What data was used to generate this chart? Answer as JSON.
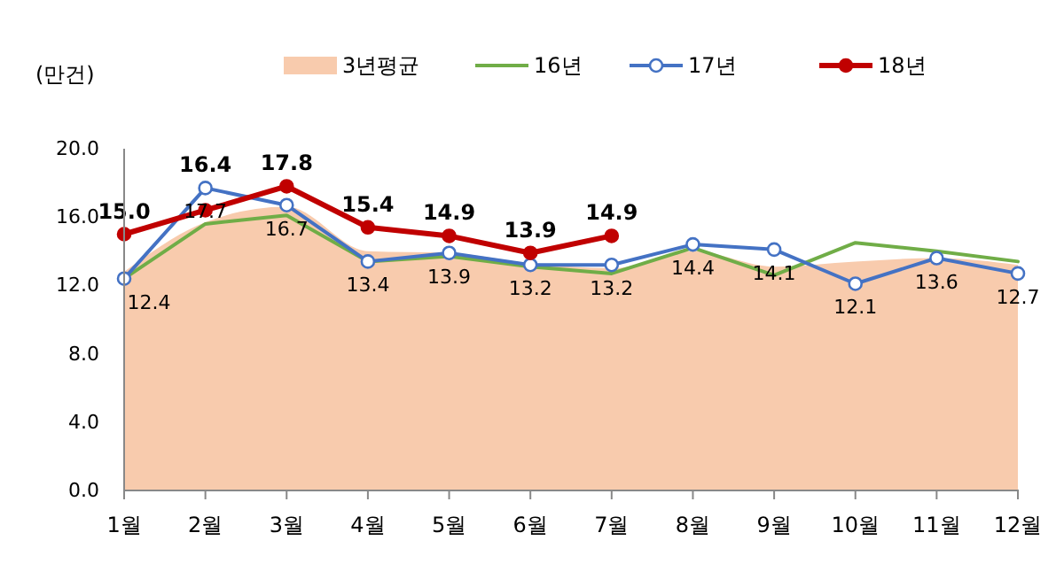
{
  "chart_data": {
    "type": "line",
    "ylabel": "(만건)",
    "categories": [
      "1월",
      "2월",
      "3월",
      "4월",
      "5월",
      "6월",
      "7월",
      "8월",
      "9월",
      "10월",
      "11월",
      "12월"
    ],
    "ylim": [
      0,
      20
    ],
    "yticks": [
      {
        "value": 0,
        "label": "0.0"
      },
      {
        "value": 4,
        "label": "4.0"
      },
      {
        "value": 8,
        "label": "8.0"
      },
      {
        "value": 12,
        "label": "12.0"
      },
      {
        "value": 16,
        "label": "16.0"
      },
      {
        "value": 20,
        "label": "20.0"
      }
    ],
    "legend": "top",
    "grid": false,
    "series": [
      {
        "name": "3년평균",
        "type": "area",
        "color": "#f8cbad",
        "values": [
          12.8,
          15.7,
          16.6,
          14.0,
          13.9,
          13.3,
          13.0,
          14.0,
          13.1,
          13.4,
          13.6,
          13.2
        ]
      },
      {
        "name": "16년",
        "type": "line",
        "color": "#70ad47",
        "marker": "none",
        "values": [
          12.4,
          15.6,
          16.1,
          13.4,
          13.7,
          13.1,
          12.7,
          14.2,
          12.6,
          14.5,
          14.0,
          13.4
        ]
      },
      {
        "name": "17년",
        "type": "line",
        "color": "#4472c4",
        "marker": "circle",
        "values": [
          12.4,
          17.7,
          16.7,
          13.4,
          13.9,
          13.2,
          13.2,
          14.4,
          14.1,
          12.1,
          13.6,
          12.7
        ],
        "value_labels": [
          "12.4",
          "17.7",
          "16.7",
          "13.4",
          "13.9",
          "13.2",
          "13.2",
          "14.4",
          "14.1",
          "12.1",
          "13.6",
          "12.7"
        ]
      },
      {
        "name": "18년",
        "type": "line",
        "color": "#c00000",
        "marker": "circle",
        "values": [
          15.0,
          16.4,
          17.8,
          15.4,
          14.9,
          13.9,
          14.9,
          null,
          null,
          null,
          null,
          null
        ],
        "value_labels": [
          "15.0",
          "16.4",
          "17.8",
          "15.4",
          "14.9",
          "13.9",
          "14.9",
          null,
          null,
          null,
          null,
          null
        ]
      }
    ]
  }
}
